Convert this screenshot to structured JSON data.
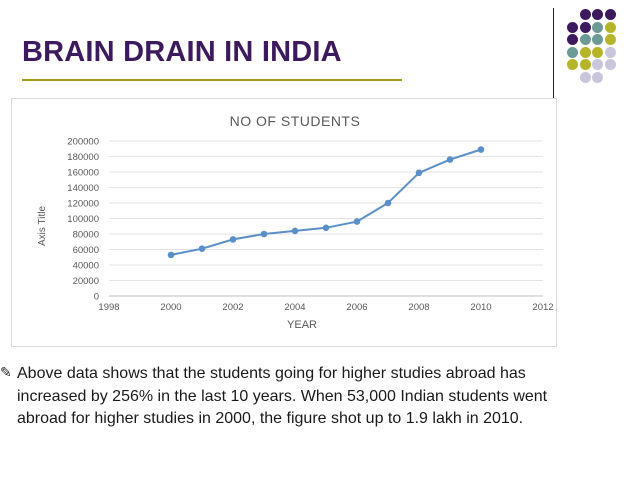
{
  "slide": {
    "title": "BRAIN DRAIN IN INDIA",
    "bullet_text": "Above  data shows that the students going for higher studies abroad has increased by 256% in the last 10 years. When 53,000 Indian students went abroad for higher studies in 2000, the figure shot up to 1.9 lakh in 2010.",
    "bullet_icon": "pen-bullet-icon"
  },
  "colors": {
    "title": "#3d1a5e",
    "accent_rule": "#a39a12",
    "line": "#5b8fc7",
    "dot_purple": "#3d1a5e",
    "dot_teal": "#6e9a96",
    "dot_olive": "#b6b52a",
    "dot_lavender": "#c9c6dc"
  },
  "chart_data": {
    "type": "line",
    "title": "NO OF STUDENTS",
    "xlabel": "YEAR",
    "ylabel": "Axis Title",
    "x": [
      2000,
      2001,
      2002,
      2003,
      2004,
      2005,
      2006,
      2007,
      2008,
      2009,
      2010
    ],
    "values": [
      53000,
      61000,
      73000,
      80000,
      84000,
      88000,
      96000,
      120000,
      159000,
      176000,
      189000
    ],
    "xlim": [
      1998,
      2012
    ],
    "ylim": [
      0,
      200000
    ],
    "x_ticks": [
      "1998",
      "2000",
      "2002",
      "2004",
      "2006",
      "2008",
      "2010",
      "2012"
    ],
    "y_ticks": [
      "0",
      "20000",
      "40000",
      "60000",
      "80000",
      "100000",
      "120000",
      "140000",
      "160000",
      "180000",
      "200000"
    ],
    "grid": true,
    "legend": "none"
  }
}
